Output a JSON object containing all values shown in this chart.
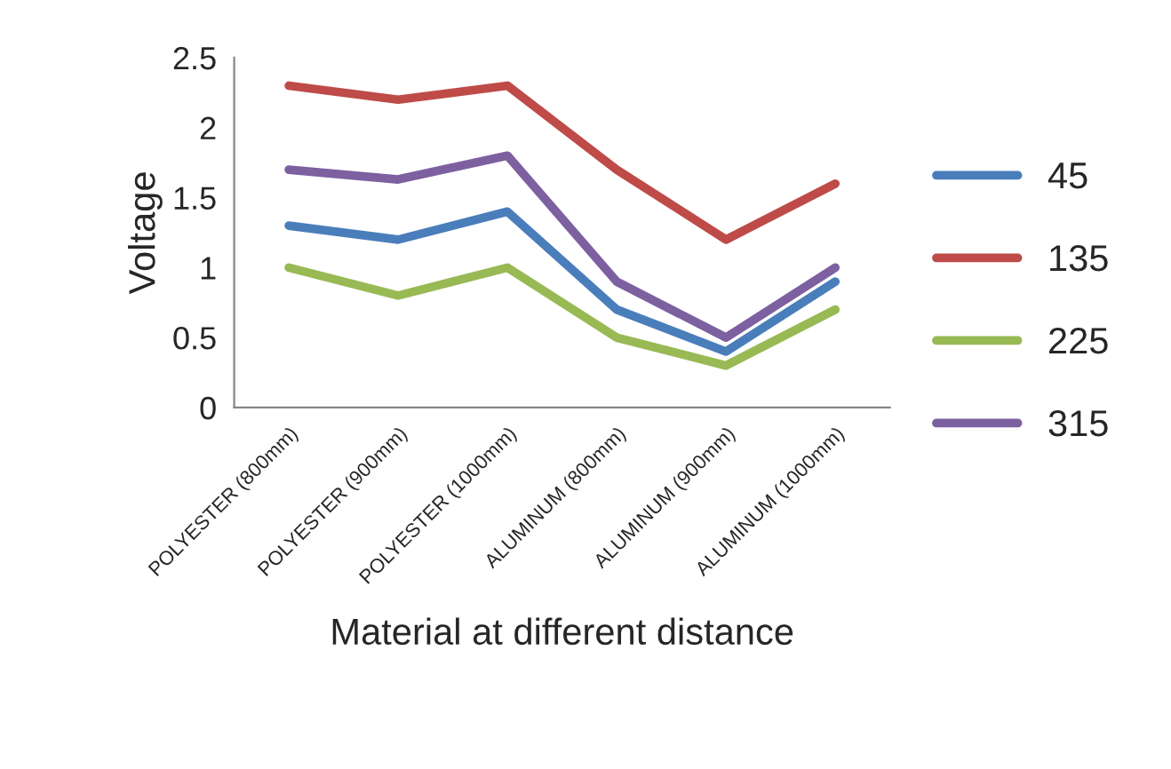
{
  "chart_data": {
    "type": "line",
    "xlabel": "Material at different distance",
    "ylabel": "Voltage",
    "categories": [
      "POLYESTER (800mm)",
      "POLYESTER (900mm)",
      "POLYESTER (1000mm)",
      "ALUMINUM (800mm)",
      "ALUMINUM (900mm)",
      "ALUMINUM (1000mm)"
    ],
    "series": [
      {
        "name": "45",
        "color": "#4a7ebb",
        "values": [
          1.3,
          1.2,
          1.4,
          0.7,
          0.4,
          0.9
        ]
      },
      {
        "name": "135",
        "color": "#be4b48",
        "values": [
          2.3,
          2.2,
          2.3,
          1.7,
          1.2,
          1.6
        ]
      },
      {
        "name": "225",
        "color": "#98b954",
        "values": [
          1.0,
          0.8,
          1.0,
          0.5,
          0.3,
          0.7
        ]
      },
      {
        "name": "315",
        "color": "#7d60a0",
        "values": [
          1.7,
          1.63,
          1.8,
          0.9,
          0.5,
          1.0
        ]
      }
    ],
    "ylim": [
      0,
      2.5
    ],
    "yticks": [
      0,
      0.5,
      1,
      1.5,
      2,
      2.5
    ],
    "grid": false,
    "legend": "right",
    "marker": "none",
    "line_style": "solid"
  }
}
